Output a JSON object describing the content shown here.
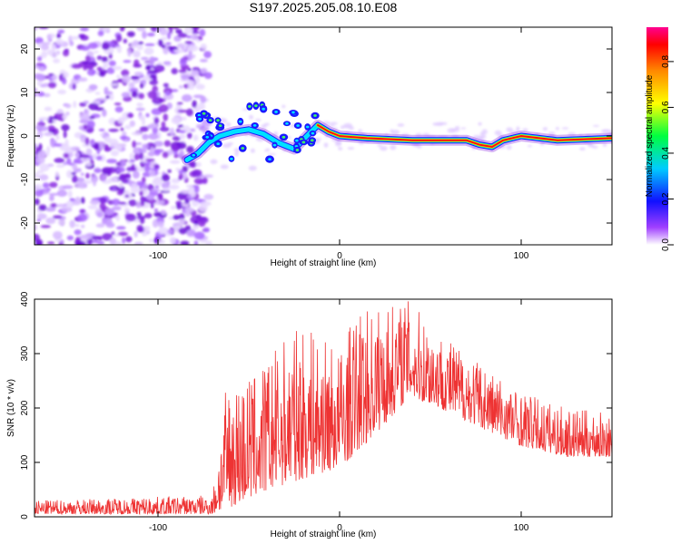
{
  "title": "S197.2025.205.08.10.E08",
  "chart_data": [
    {
      "type": "heatmap",
      "xlabel": "Height of straight line (km)",
      "ylabel": "Frequency (Hz)",
      "xlim": [
        -168,
        150
      ],
      "ylim": [
        -25,
        25
      ],
      "xticks": [
        -100,
        0,
        100
      ],
      "yticks": [
        -20,
        -10,
        0,
        10,
        20
      ],
      "colorbar": {
        "label": "Normalized spectral amplitude",
        "range": [
          0.0,
          0.95
        ],
        "ticks": [
          "0.0",
          "0.2",
          "0.4",
          "0.6",
          "0.8"
        ],
        "colormap": "rainbow (white-violet-blue-cyan-green-yellow-orange-red-pink)"
      },
      "ridge": [
        {
          "x": -84,
          "y": -5.5
        },
        {
          "x": -78,
          "y": -4
        },
        {
          "x": -72,
          "y": -1.5
        },
        {
          "x": -66,
          "y": 0
        },
        {
          "x": -58,
          "y": 1
        },
        {
          "x": -50,
          "y": 1.5
        },
        {
          "x": -42,
          "y": 0.5
        },
        {
          "x": -34,
          "y": -1.5
        },
        {
          "x": -25,
          "y": -3
        },
        {
          "x": -18,
          "y": 0
        },
        {
          "x": -12,
          "y": 2.5
        },
        {
          "x": -6,
          "y": 1
        },
        {
          "x": 0,
          "y": 0
        },
        {
          "x": 15,
          "y": -0.5
        },
        {
          "x": 40,
          "y": -1
        },
        {
          "x": 70,
          "y": -1
        },
        {
          "x": 77,
          "y": -2
        },
        {
          "x": 84,
          "y": -2.5
        },
        {
          "x": 90,
          "y": -1
        },
        {
          "x": 100,
          "y": 0
        },
        {
          "x": 120,
          "y": -1
        },
        {
          "x": 150,
          "y": -0.5
        }
      ],
      "noise_region_x": [
        -168,
        -72
      ]
    },
    {
      "type": "line",
      "xlabel": "Height of straight line (km)",
      "ylabel": "SNR (10 * v/v)",
      "xlim": [
        -168,
        150
      ],
      "ylim": [
        0,
        400
      ],
      "xticks": [
        -100,
        0,
        100
      ],
      "yticks": [
        0,
        100,
        200,
        300,
        400
      ],
      "color": "#ee3333",
      "envelope": [
        {
          "x": -168,
          "lo": 5,
          "hi": 30
        },
        {
          "x": -70,
          "lo": 5,
          "hi": 40
        },
        {
          "x": -62,
          "lo": 15,
          "hi": 250
        },
        {
          "x": -45,
          "lo": 40,
          "hi": 270
        },
        {
          "x": -30,
          "lo": 60,
          "hi": 330
        },
        {
          "x": -20,
          "lo": 70,
          "hi": 350
        },
        {
          "x": 0,
          "lo": 90,
          "hi": 310
        },
        {
          "x": 10,
          "lo": 120,
          "hi": 380
        },
        {
          "x": 25,
          "lo": 170,
          "hi": 390
        },
        {
          "x": 38,
          "lo": 220,
          "hi": 400
        },
        {
          "x": 55,
          "lo": 200,
          "hi": 340
        },
        {
          "x": 80,
          "lo": 160,
          "hi": 280
        },
        {
          "x": 100,
          "lo": 130,
          "hi": 230
        },
        {
          "x": 125,
          "lo": 110,
          "hi": 200
        },
        {
          "x": 150,
          "lo": 110,
          "hi": 190
        }
      ]
    }
  ]
}
